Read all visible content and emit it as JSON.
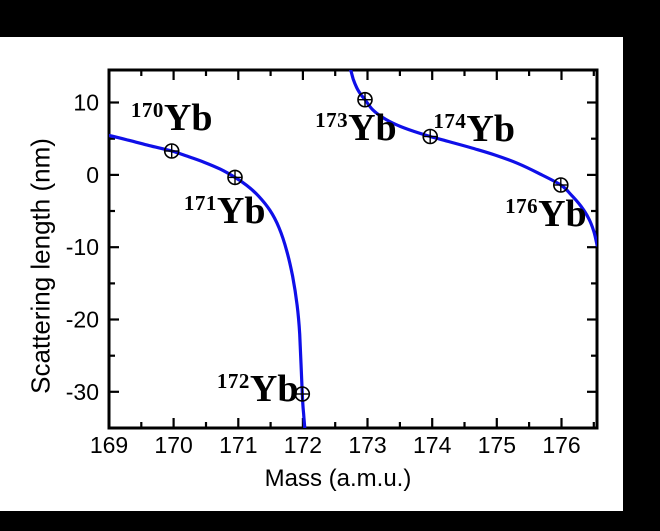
{
  "letterbox_color": "#000000",
  "background_color": "#ffffff",
  "chart_data": {
    "type": "line",
    "title": "",
    "xlabel": "Mass (a.m.u.)",
    "ylabel": "Scattering length (nm)",
    "xlim": [
      169,
      176.55
    ],
    "ylim": [
      -35,
      14.5
    ],
    "grid": false,
    "legend": "none",
    "axis_color": "#000000",
    "curve_color": "#0f0fe8",
    "marker_style": "circle-plus",
    "x_major_ticks": [
      169,
      170,
      171,
      172,
      173,
      174,
      175,
      176
    ],
    "x_minor_ticks": [
      169.5,
      170.5,
      171.5,
      172.5,
      173.5,
      174.5,
      175.5,
      176.5
    ],
    "y_major_ticks": [
      10,
      0,
      -10,
      -20,
      -30
    ],
    "y_minor_ticks": [
      5,
      -5,
      -15,
      -25,
      -35
    ],
    "x_tick_labels": [
      "169",
      "170",
      "171",
      "172",
      "173",
      "174",
      "175",
      "176"
    ],
    "y_tick_labels": [
      "10",
      "0",
      "-10",
      "-20",
      "-30"
    ],
    "series": [
      {
        "name": "scattering-length-curve-left-branch",
        "points": [
          [
            169.0,
            5.45
          ],
          [
            169.3,
            4.8
          ],
          [
            169.62,
            4.05
          ],
          [
            169.97,
            3.3
          ],
          [
            170.22,
            2.55
          ],
          [
            170.47,
            1.75
          ],
          [
            170.72,
            0.8
          ],
          [
            170.95,
            -0.35
          ],
          [
            171.13,
            -1.45
          ],
          [
            171.31,
            -2.9
          ],
          [
            171.49,
            -4.9
          ],
          [
            171.63,
            -7.3
          ],
          [
            171.75,
            -10.5
          ],
          [
            171.84,
            -14.0
          ],
          [
            171.91,
            -18.0
          ],
          [
            171.95,
            -22.0
          ],
          [
            171.99,
            -30.3
          ],
          [
            172.01,
            -33.0
          ],
          [
            172.03,
            -35.0
          ]
        ]
      },
      {
        "name": "scattering-length-curve-right-branch",
        "points": [
          [
            172.74,
            14.5
          ],
          [
            172.78,
            13.2
          ],
          [
            172.83,
            12.1
          ],
          [
            172.89,
            11.2
          ],
          [
            172.96,
            10.4
          ],
          [
            173.08,
            9.0
          ],
          [
            173.24,
            7.9
          ],
          [
            173.44,
            6.95
          ],
          [
            173.69,
            6.1
          ],
          [
            173.97,
            5.3
          ],
          [
            174.28,
            4.55
          ],
          [
            174.62,
            3.7
          ],
          [
            174.97,
            2.75
          ],
          [
            175.32,
            1.6
          ],
          [
            175.64,
            0.25
          ],
          [
            175.99,
            -1.4
          ],
          [
            176.15,
            -2.75
          ],
          [
            176.3,
            -4.3
          ],
          [
            176.42,
            -6.0
          ],
          [
            176.5,
            -7.8
          ],
          [
            176.55,
            -9.7
          ]
        ]
      }
    ],
    "isotope_points": [
      {
        "isotope": "170Yb",
        "sup": "170",
        "element": "Yb",
        "mass_amu": 169.97,
        "scattering_length_nm": 3.3,
        "label_pos": [
          169.97,
          7.9
        ]
      },
      {
        "isotope": "171Yb",
        "sup": "171",
        "element": "Yb",
        "mass_amu": 170.95,
        "scattering_length_nm": -0.35,
        "label_pos": [
          170.79,
          -5.0
        ]
      },
      {
        "isotope": "172Yb",
        "sup": "172",
        "element": "Yb",
        "mass_amu": 171.99,
        "scattering_length_nm": -30.3,
        "label_pos": [
          171.3,
          -29.6
        ]
      },
      {
        "isotope": "173Yb",
        "sup": "173",
        "element": "Yb",
        "mass_amu": 172.96,
        "scattering_length_nm": 10.4,
        "label_pos": [
          172.82,
          6.5
        ]
      },
      {
        "isotope": "174Yb",
        "sup": "174",
        "element": "Yb",
        "mass_amu": 173.97,
        "scattering_length_nm": 5.3,
        "label_pos": [
          174.65,
          6.4
        ]
      },
      {
        "isotope": "176Yb",
        "sup": "176",
        "element": "Yb",
        "mass_amu": 175.99,
        "scattering_length_nm": -1.4,
        "label_pos": [
          175.76,
          -5.4
        ]
      }
    ]
  }
}
